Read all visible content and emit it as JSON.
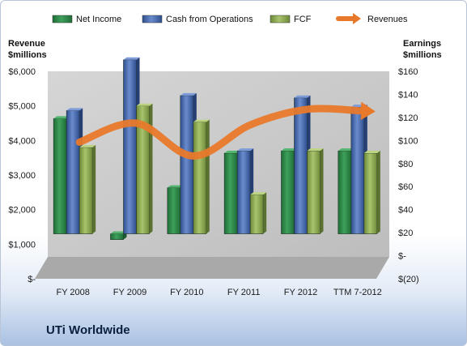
{
  "company": "UTi Worldwide",
  "colors": {
    "net_income": "#2e8b4a",
    "cash_from_operations": "#4a6bb0",
    "fcf": "#93ad5a",
    "revenues": "#e8792b",
    "plot_background": "#c9c9c9"
  },
  "chart_data": {
    "type": "bar",
    "categories": [
      "FY 2008",
      "FY 2009",
      "FY 2010",
      "FY 2011",
      "FY 2012",
      "TTM 7-2012"
    ],
    "series": [
      {
        "name": "Net Income",
        "axis": "right",
        "values": [
          100,
          -5,
          40,
          70,
          72,
          72
        ]
      },
      {
        "name": "Cash from Operations",
        "axis": "right",
        "values": [
          107,
          151,
          120,
          72,
          118,
          110
        ]
      },
      {
        "name": "FCF",
        "axis": "right",
        "values": [
          75,
          111,
          97,
          34,
          72,
          70
        ]
      },
      {
        "name": "Revenues",
        "type": "line",
        "axis": "left",
        "values": [
          3950,
          4500,
          3550,
          4450,
          4900,
          4850
        ]
      }
    ],
    "y_left": {
      "label_lines": [
        "Revenue",
        "$millions"
      ],
      "ylim": [
        0,
        6000
      ],
      "ticks": [
        {
          "value": 0,
          "label": "$-"
        },
        {
          "value": 1000,
          "label": "$1,000"
        },
        {
          "value": 2000,
          "label": "$2,000"
        },
        {
          "value": 3000,
          "label": "$3,000"
        },
        {
          "value": 4000,
          "label": "$4,000"
        },
        {
          "value": 5000,
          "label": "$5,000"
        },
        {
          "value": 6000,
          "label": "$6,000"
        }
      ]
    },
    "y_right": {
      "label_lines": [
        "Earnings",
        "$millions"
      ],
      "ylim": [
        -20,
        160
      ],
      "ticks": [
        {
          "value": -20,
          "label": "$(20)"
        },
        {
          "value": 0,
          "label": "$-"
        },
        {
          "value": 20,
          "label": "$20"
        },
        {
          "value": 40,
          "label": "$40"
        },
        {
          "value": 60,
          "label": "$60"
        },
        {
          "value": 80,
          "label": "$80"
        },
        {
          "value": 100,
          "label": "$100"
        },
        {
          "value": 120,
          "label": "$120"
        },
        {
          "value": 140,
          "label": "$140"
        },
        {
          "value": 160,
          "label": "$160"
        }
      ]
    },
    "legend_position": "top",
    "grid": false
  }
}
